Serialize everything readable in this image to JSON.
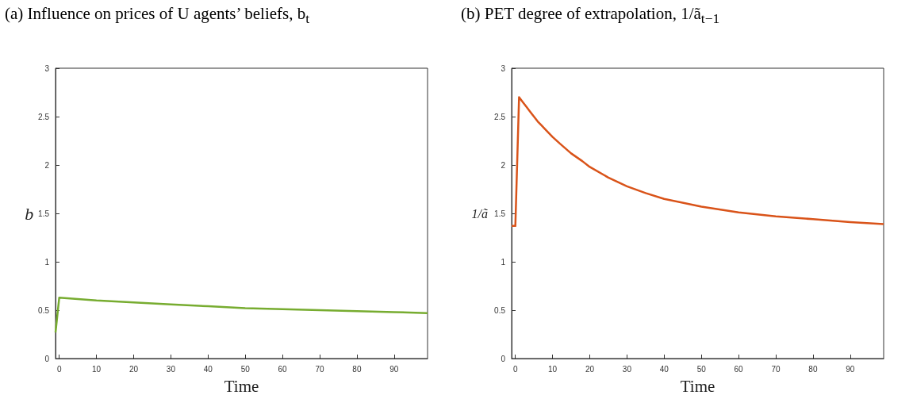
{
  "chart_data": [
    {
      "type": "line",
      "title": "(a) Influence on prices of U agents’ beliefs, b$_{t}$",
      "xlabel": "Time",
      "ylabel": "b",
      "x": [
        -1,
        0,
        10,
        20,
        30,
        40,
        50,
        60,
        70,
        80,
        90,
        99
      ],
      "series": [
        {
          "color": "#77ac30",
          "values": [
            0.27,
            0.63,
            0.6,
            0.58,
            0.56,
            0.54,
            0.52,
            0.51,
            0.5,
            0.49,
            0.48,
            0.47
          ]
        }
      ],
      "xlim": [
        -1,
        99
      ],
      "xticks": [
        0,
        10,
        20,
        30,
        40,
        50,
        60,
        70,
        80,
        90
      ],
      "ylim": [
        0,
        3
      ],
      "yticks": [
        0,
        0.5,
        1,
        1.5,
        2,
        2.5,
        3
      ],
      "grid": false,
      "marker": "none",
      "line_style": "solid"
    },
    {
      "type": "line",
      "title": "(b) PET degree of extrapolation, 1/ã$_{t−1}$",
      "xlabel": "Time",
      "ylabel": "1/ã",
      "x": [
        -1,
        0,
        1,
        2,
        3,
        4,
        5,
        6,
        7,
        8,
        10,
        12,
        15,
        18,
        20,
        25,
        30,
        35,
        40,
        50,
        60,
        70,
        80,
        90,
        99
      ],
      "series": [
        {
          "color": "#d95319",
          "values": [
            1.37,
            1.37,
            2.7,
            2.65,
            2.6,
            2.55,
            2.5,
            2.45,
            2.41,
            2.37,
            2.29,
            2.22,
            2.12,
            2.04,
            1.98,
            1.87,
            1.78,
            1.71,
            1.65,
            1.57,
            1.51,
            1.47,
            1.44,
            1.41,
            1.39
          ]
        }
      ],
      "xlim": [
        -1,
        99
      ],
      "xticks": [
        0,
        10,
        20,
        30,
        40,
        50,
        60,
        70,
        80,
        90
      ],
      "ylim": [
        0,
        3
      ],
      "yticks": [
        0,
        0.5,
        1,
        1.5,
        2,
        2.5,
        3
      ],
      "grid": false,
      "marker": "none",
      "line_style": "solid"
    }
  ]
}
